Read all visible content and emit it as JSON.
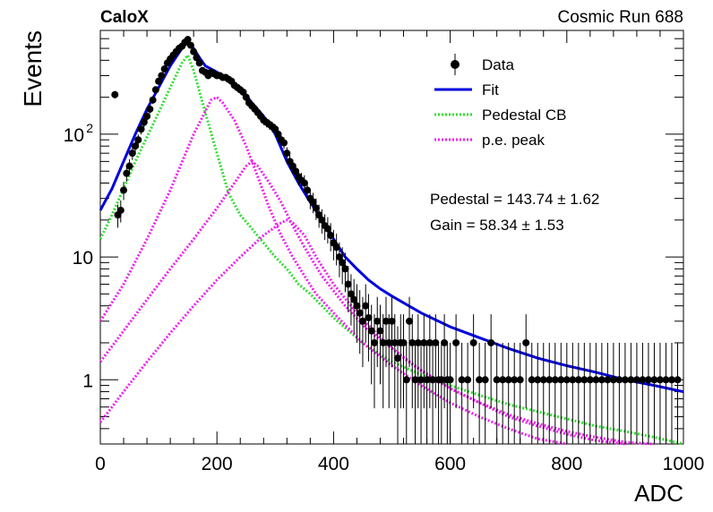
{
  "header": {
    "experiment": "CaloX",
    "run_label": "Cosmic Run 688"
  },
  "fit_results": {
    "pedestal_text": "Pedestal = 143.74 ± 1.62",
    "gain_text": "Gain = 58.34 ± 1.53"
  },
  "chart_data": {
    "type": "scatter",
    "xlabel": "ADC",
    "ylabel": "Events",
    "xlim": [
      0,
      1000
    ],
    "ylim": [
      0.3,
      700
    ],
    "log_y": true,
    "grid": false,
    "legend_position": "top-right",
    "x_ticks": [
      {
        "value": 0,
        "label": "0"
      },
      {
        "value": 200,
        "label": "200"
      },
      {
        "value": 400,
        "label": "400"
      },
      {
        "value": 600,
        "label": "600"
      },
      {
        "value": 800,
        "label": "800"
      },
      {
        "value": 1000,
        "label": "1000"
      }
    ],
    "y_ticks": [
      {
        "value": 1,
        "label": "1"
      },
      {
        "value": 10,
        "label": "10"
      },
      {
        "value": 100,
        "label": "10",
        "exponent": "2"
      }
    ],
    "legend": [
      {
        "label": "Data",
        "style": "marker",
        "color": "#000000"
      },
      {
        "label": "Fit",
        "style": "solid",
        "color": "#0000dd"
      },
      {
        "label": "Pedestal CB",
        "style": "dotted",
        "color": "#33dd33"
      },
      {
        "label": "p.e. peak",
        "style": "dotted",
        "color": "#ee22ee"
      }
    ],
    "series": [
      {
        "name": "Data",
        "color": "#000000",
        "points": [
          [
            25,
            210
          ],
          [
            30,
            22
          ],
          [
            35,
            24
          ],
          [
            40,
            35
          ],
          [
            45,
            48
          ],
          [
            50,
            55
          ],
          [
            55,
            70
          ],
          [
            60,
            80
          ],
          [
            65,
            90
          ],
          [
            70,
            110
          ],
          [
            75,
            125
          ],
          [
            80,
            140
          ],
          [
            85,
            160
          ],
          [
            90,
            190
          ],
          [
            95,
            230
          ],
          [
            100,
            270
          ],
          [
            105,
            300
          ],
          [
            110,
            340
          ],
          [
            115,
            380
          ],
          [
            120,
            410
          ],
          [
            125,
            440
          ],
          [
            130,
            470
          ],
          [
            135,
            500
          ],
          [
            140,
            520
          ],
          [
            145,
            560
          ],
          [
            150,
            590
          ],
          [
            155,
            530
          ],
          [
            160,
            470
          ],
          [
            165,
            420
          ],
          [
            170,
            380
          ],
          [
            175,
            330
          ],
          [
            180,
            320
          ],
          [
            185,
            300
          ],
          [
            190,
            320
          ],
          [
            195,
            310
          ],
          [
            200,
            300
          ],
          [
            205,
            300
          ],
          [
            210,
            290
          ],
          [
            215,
            290
          ],
          [
            220,
            280
          ],
          [
            225,
            270
          ],
          [
            230,
            250
          ],
          [
            235,
            240
          ],
          [
            240,
            230
          ],
          [
            245,
            220
          ],
          [
            250,
            200
          ],
          [
            255,
            180
          ],
          [
            260,
            170
          ],
          [
            265,
            160
          ],
          [
            270,
            150
          ],
          [
            275,
            140
          ],
          [
            280,
            130
          ],
          [
            285,
            125
          ],
          [
            290,
            120
          ],
          [
            295,
            115
          ],
          [
            300,
            110
          ],
          [
            305,
            100
          ],
          [
            310,
            90
          ],
          [
            315,
            85
          ],
          [
            320,
            70
          ],
          [
            325,
            60
          ],
          [
            330,
            55
          ],
          [
            335,
            50
          ],
          [
            340,
            45
          ],
          [
            345,
            42
          ],
          [
            350,
            40
          ],
          [
            355,
            35
          ],
          [
            360,
            30
          ],
          [
            365,
            28
          ],
          [
            370,
            25
          ],
          [
            375,
            22
          ],
          [
            380,
            20
          ],
          [
            385,
            18
          ],
          [
            390,
            17
          ],
          [
            395,
            15
          ],
          [
            400,
            13
          ],
          [
            405,
            12
          ],
          [
            410,
            10
          ],
          [
            415,
            9
          ],
          [
            420,
            8
          ],
          [
            425,
            6
          ],
          [
            430,
            5
          ],
          [
            435,
            4.5
          ],
          [
            440,
            4
          ],
          [
            445,
            3.5
          ],
          [
            450,
            3
          ],
          [
            455,
            4
          ],
          [
            460,
            3.2
          ],
          [
            465,
            2.5
          ],
          [
            470,
            2
          ],
          [
            475,
            3
          ],
          [
            480,
            2.5
          ],
          [
            485,
            2
          ],
          [
            490,
            3
          ],
          [
            495,
            2
          ],
          [
            500,
            3
          ],
          [
            505,
            2
          ],
          [
            510,
            1.5
          ],
          [
            515,
            2
          ],
          [
            520,
            2
          ],
          [
            525,
            1
          ],
          [
            530,
            3
          ],
          [
            535,
            2
          ],
          [
            540,
            1
          ],
          [
            545,
            2
          ],
          [
            550,
            1
          ],
          [
            555,
            2
          ],
          [
            560,
            1
          ],
          [
            565,
            2
          ],
          [
            570,
            1
          ],
          [
            575,
            2
          ],
          [
            580,
            1
          ],
          [
            585,
            1
          ],
          [
            590,
            2
          ],
          [
            595,
            1
          ],
          [
            600,
            1
          ],
          [
            610,
            2
          ],
          [
            620,
            1
          ],
          [
            630,
            1
          ],
          [
            640,
            2
          ],
          [
            650,
            1
          ],
          [
            660,
            1
          ],
          [
            670,
            2
          ],
          [
            680,
            1
          ],
          [
            690,
            1
          ],
          [
            700,
            1
          ],
          [
            710,
            1
          ],
          [
            720,
            1
          ],
          [
            730,
            2
          ],
          [
            740,
            1
          ],
          [
            750,
            1
          ],
          [
            760,
            1
          ],
          [
            770,
            1
          ],
          [
            780,
            1
          ],
          [
            790,
            1
          ],
          [
            800,
            1
          ],
          [
            810,
            1
          ],
          [
            820,
            1
          ],
          [
            830,
            1
          ],
          [
            840,
            1
          ],
          [
            850,
            1
          ],
          [
            860,
            1
          ],
          [
            870,
            1
          ],
          [
            880,
            1
          ],
          [
            890,
            1
          ],
          [
            900,
            1
          ],
          [
            910,
            1
          ],
          [
            920,
            1
          ],
          [
            930,
            1
          ],
          [
            940,
            1
          ],
          [
            950,
            1
          ],
          [
            960,
            1
          ],
          [
            970,
            1
          ],
          [
            980,
            1
          ],
          [
            990,
            1
          ]
        ]
      },
      {
        "name": "Fit",
        "color": "#0000dd",
        "points": [
          [
            0,
            24
          ],
          [
            20,
            36
          ],
          [
            40,
            60
          ],
          [
            60,
            100
          ],
          [
            80,
            160
          ],
          [
            100,
            240
          ],
          [
            120,
            360
          ],
          [
            140,
            500
          ],
          [
            150,
            560
          ],
          [
            160,
            500
          ],
          [
            170,
            420
          ],
          [
            180,
            360
          ],
          [
            200,
            320
          ],
          [
            220,
            280
          ],
          [
            240,
            240
          ],
          [
            260,
            180
          ],
          [
            280,
            140
          ],
          [
            300,
            100
          ],
          [
            320,
            60
          ],
          [
            340,
            40
          ],
          [
            360,
            28
          ],
          [
            380,
            20
          ],
          [
            400,
            14
          ],
          [
            420,
            10
          ],
          [
            440,
            8
          ],
          [
            460,
            6.5
          ],
          [
            480,
            5.5
          ],
          [
            500,
            4.8
          ],
          [
            550,
            3.5
          ],
          [
            600,
            2.7
          ],
          [
            650,
            2.2
          ],
          [
            700,
            1.8
          ],
          [
            750,
            1.5
          ],
          [
            800,
            1.3
          ],
          [
            850,
            1.15
          ],
          [
            900,
            1.0
          ],
          [
            950,
            0.9
          ],
          [
            1000,
            0.8
          ]
        ]
      },
      {
        "name": "Pedestal CB",
        "color": "#33dd33",
        "points": [
          [
            0,
            14
          ],
          [
            20,
            22
          ],
          [
            40,
            36
          ],
          [
            60,
            60
          ],
          [
            80,
            95
          ],
          [
            100,
            150
          ],
          [
            120,
            240
          ],
          [
            140,
            380
          ],
          [
            150,
            440
          ],
          [
            160,
            330
          ],
          [
            180,
            150
          ],
          [
            200,
            70
          ],
          [
            220,
            33
          ],
          [
            240,
            22
          ],
          [
            260,
            17
          ],
          [
            280,
            13
          ],
          [
            300,
            10
          ],
          [
            320,
            8
          ],
          [
            340,
            6
          ],
          [
            360,
            5
          ],
          [
            380,
            4
          ],
          [
            400,
            3.2
          ],
          [
            450,
            2
          ],
          [
            500,
            1.4
          ],
          [
            550,
            1.1
          ],
          [
            600,
            0.9
          ],
          [
            650,
            0.75
          ],
          [
            700,
            0.63
          ],
          [
            750,
            0.55
          ],
          [
            800,
            0.48
          ],
          [
            850,
            0.42
          ],
          [
            900,
            0.38
          ],
          [
            950,
            0.34
          ],
          [
            1000,
            0.3
          ]
        ]
      },
      {
        "name": "p.e. peak 1",
        "color": "#ee22ee",
        "points": [
          [
            0,
            3
          ],
          [
            40,
            6
          ],
          [
            80,
            14
          ],
          [
            120,
            35
          ],
          [
            160,
            100
          ],
          [
            190,
            190
          ],
          [
            200,
            200
          ],
          [
            210,
            180
          ],
          [
            230,
            130
          ],
          [
            250,
            80
          ],
          [
            270,
            45
          ],
          [
            290,
            25
          ],
          [
            310,
            15
          ],
          [
            330,
            10
          ],
          [
            350,
            7
          ],
          [
            370,
            5
          ],
          [
            400,
            3.5
          ],
          [
            450,
            2
          ],
          [
            500,
            1.3
          ],
          [
            550,
            0.9
          ],
          [
            600,
            0.65
          ],
          [
            650,
            0.5
          ],
          [
            700,
            0.4
          ],
          [
            750,
            0.33
          ],
          [
            800,
            0.3
          ]
        ]
      },
      {
        "name": "p.e. peak 2",
        "color": "#ee22ee",
        "points": [
          [
            0,
            1.4
          ],
          [
            40,
            2.5
          ],
          [
            80,
            4.5
          ],
          [
            120,
            8
          ],
          [
            160,
            14
          ],
          [
            200,
            25
          ],
          [
            230,
            40
          ],
          [
            250,
            55
          ],
          [
            260,
            60
          ],
          [
            270,
            55
          ],
          [
            290,
            40
          ],
          [
            310,
            28
          ],
          [
            330,
            18
          ],
          [
            350,
            12
          ],
          [
            380,
            7
          ],
          [
            420,
            4
          ],
          [
            460,
            2.5
          ],
          [
            500,
            1.8
          ],
          [
            550,
            1.2
          ],
          [
            600,
            0.85
          ],
          [
            650,
            0.65
          ],
          [
            700,
            0.5
          ],
          [
            750,
            0.42
          ],
          [
            800,
            0.36
          ],
          [
            850,
            0.32
          ],
          [
            900,
            0.3
          ]
        ]
      },
      {
        "name": "p.e. peak 3",
        "color": "#ee22ee",
        "points": [
          [
            0,
            0.45
          ],
          [
            40,
            0.8
          ],
          [
            80,
            1.4
          ],
          [
            120,
            2.4
          ],
          [
            160,
            4
          ],
          [
            200,
            6.5
          ],
          [
            240,
            10
          ],
          [
            280,
            15
          ],
          [
            310,
            19
          ],
          [
            320,
            20
          ],
          [
            330,
            19
          ],
          [
            350,
            15
          ],
          [
            370,
            10
          ],
          [
            400,
            6
          ],
          [
            440,
            3.5
          ],
          [
            480,
            2.2
          ],
          [
            520,
            1.5
          ],
          [
            560,
            1.1
          ],
          [
            600,
            0.85
          ],
          [
            650,
            0.65
          ],
          [
            700,
            0.52
          ],
          [
            750,
            0.44
          ],
          [
            800,
            0.38
          ],
          [
            850,
            0.34
          ],
          [
            900,
            0.31
          ],
          [
            950,
            0.3
          ]
        ]
      }
    ]
  }
}
